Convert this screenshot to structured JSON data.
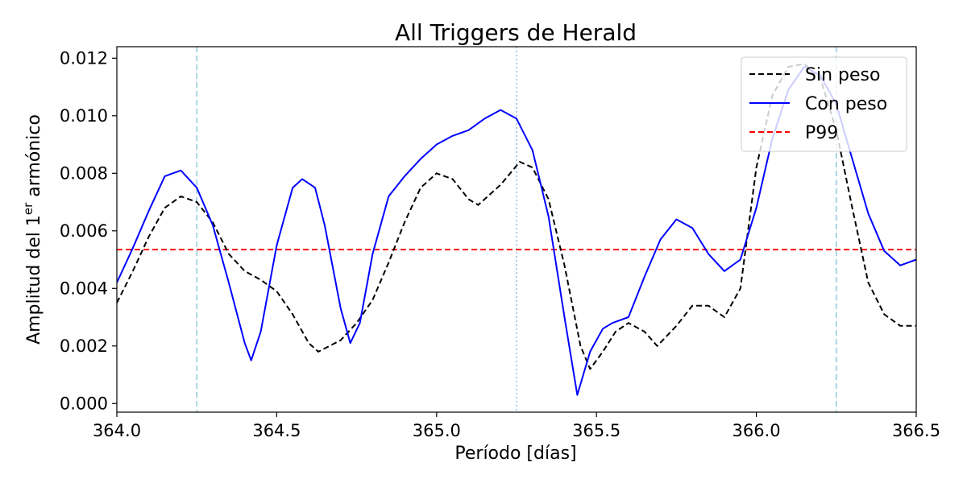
{
  "chart_data": {
    "type": "line",
    "title": "All Triggers de Herald",
    "xlabel": "Período [días]",
    "ylabel_main": "Amplitud del 1",
    "ylabel_sup": "er",
    "ylabel_tail": " armónico",
    "xlim": [
      364.0,
      366.5
    ],
    "ylim": [
      -0.0003,
      0.0124
    ],
    "x_ticks": [
      "364.0",
      "364.5",
      "365.0",
      "365.5",
      "366.0",
      "366.5"
    ],
    "x_tick_values": [
      364.0,
      364.5,
      365.0,
      365.5,
      366.0,
      366.5
    ],
    "y_ticks": [
      "0.000",
      "0.002",
      "0.004",
      "0.006",
      "0.008",
      "0.010",
      "0.012"
    ],
    "y_tick_values": [
      0.0,
      0.002,
      0.004,
      0.006,
      0.008,
      0.01,
      0.012
    ],
    "grid": false,
    "legend_position": "top-right",
    "vlines": [
      {
        "x": 364.25,
        "style": "dashed",
        "color": "#9fd3e0"
      },
      {
        "x": 365.25,
        "style": "dotted",
        "color": "#9ccbee"
      },
      {
        "x": 366.25,
        "style": "dashed",
        "color": "#9fd3e0"
      }
    ],
    "hlines": [
      {
        "name": "P99",
        "y": 0.00535,
        "color": "#ff0000",
        "style": "dashed"
      }
    ],
    "series": [
      {
        "name": "Sin peso",
        "color": "#000000",
        "style": "dashed",
        "points": [
          [
            364.0,
            0.0035
          ],
          [
            364.05,
            0.0046
          ],
          [
            364.1,
            0.0058
          ],
          [
            364.15,
            0.0068
          ],
          [
            364.2,
            0.0072
          ],
          [
            364.25,
            0.007
          ],
          [
            364.3,
            0.0063
          ],
          [
            364.35,
            0.0052
          ],
          [
            364.4,
            0.0046
          ],
          [
            364.45,
            0.0043
          ],
          [
            364.5,
            0.0039
          ],
          [
            364.55,
            0.0031
          ],
          [
            364.6,
            0.0021
          ],
          [
            364.63,
            0.0018
          ],
          [
            364.7,
            0.0022
          ],
          [
            364.75,
            0.0028
          ],
          [
            364.8,
            0.0036
          ],
          [
            364.85,
            0.0049
          ],
          [
            364.9,
            0.0063
          ],
          [
            364.95,
            0.0075
          ],
          [
            365.0,
            0.008
          ],
          [
            365.05,
            0.0078
          ],
          [
            365.1,
            0.0071
          ],
          [
            365.13,
            0.0069
          ],
          [
            365.2,
            0.0076
          ],
          [
            365.26,
            0.0084
          ],
          [
            365.3,
            0.0082
          ],
          [
            365.35,
            0.0071
          ],
          [
            365.4,
            0.0048
          ],
          [
            365.45,
            0.002
          ],
          [
            365.48,
            0.0012
          ],
          [
            365.52,
            0.0018
          ],
          [
            365.56,
            0.0025
          ],
          [
            365.6,
            0.0028
          ],
          [
            365.65,
            0.0025
          ],
          [
            365.69,
            0.002
          ],
          [
            365.75,
            0.0027
          ],
          [
            365.8,
            0.0034
          ],
          [
            365.85,
            0.0034
          ],
          [
            365.9,
            0.003
          ],
          [
            365.95,
            0.004
          ],
          [
            366.0,
            0.0082
          ],
          [
            366.05,
            0.0107
          ],
          [
            366.1,
            0.0117
          ],
          [
            366.15,
            0.0118
          ],
          [
            366.2,
            0.0113
          ],
          [
            366.25,
            0.0095
          ],
          [
            366.3,
            0.0068
          ],
          [
            366.35,
            0.0042
          ],
          [
            366.4,
            0.0031
          ],
          [
            366.45,
            0.0027
          ],
          [
            366.5,
            0.0027
          ]
        ]
      },
      {
        "name": "Con peso",
        "color": "#0000ff",
        "style": "solid",
        "points": [
          [
            364.0,
            0.0042
          ],
          [
            364.05,
            0.0054
          ],
          [
            364.1,
            0.0067
          ],
          [
            364.15,
            0.0079
          ],
          [
            364.2,
            0.0081
          ],
          [
            364.25,
            0.0075
          ],
          [
            364.3,
            0.0062
          ],
          [
            364.35,
            0.0042
          ],
          [
            364.4,
            0.0021
          ],
          [
            364.42,
            0.0015
          ],
          [
            364.45,
            0.0025
          ],
          [
            364.5,
            0.0055
          ],
          [
            364.55,
            0.0075
          ],
          [
            364.58,
            0.0078
          ],
          [
            364.62,
            0.0075
          ],
          [
            364.65,
            0.0062
          ],
          [
            364.7,
            0.0033
          ],
          [
            364.73,
            0.0021
          ],
          [
            364.76,
            0.0028
          ],
          [
            364.8,
            0.0052
          ],
          [
            364.85,
            0.0072
          ],
          [
            364.9,
            0.0079
          ],
          [
            364.95,
            0.0085
          ],
          [
            365.0,
            0.009
          ],
          [
            365.05,
            0.0093
          ],
          [
            365.1,
            0.0095
          ],
          [
            365.15,
            0.0099
          ],
          [
            365.2,
            0.0102
          ],
          [
            365.25,
            0.0099
          ],
          [
            365.3,
            0.0088
          ],
          [
            365.35,
            0.0065
          ],
          [
            365.4,
            0.003
          ],
          [
            365.44,
            0.0003
          ],
          [
            365.48,
            0.0018
          ],
          [
            365.52,
            0.0026
          ],
          [
            365.55,
            0.0028
          ],
          [
            365.6,
            0.003
          ],
          [
            365.65,
            0.0044
          ],
          [
            365.7,
            0.0057
          ],
          [
            365.75,
            0.0064
          ],
          [
            365.8,
            0.0061
          ],
          [
            365.85,
            0.0052
          ],
          [
            365.9,
            0.0046
          ],
          [
            365.95,
            0.005
          ],
          [
            366.0,
            0.0068
          ],
          [
            366.05,
            0.0092
          ],
          [
            366.1,
            0.0109
          ],
          [
            366.15,
            0.0117
          ],
          [
            366.2,
            0.0114
          ],
          [
            366.25,
            0.0104
          ],
          [
            366.3,
            0.0085
          ],
          [
            366.35,
            0.0066
          ],
          [
            366.4,
            0.0053
          ],
          [
            366.45,
            0.0048
          ],
          [
            366.5,
            0.005
          ]
        ]
      }
    ],
    "legend_entries": [
      {
        "label": "Sin peso",
        "color": "#000000",
        "style": "dashed"
      },
      {
        "label": "Con peso",
        "color": "#0000ff",
        "style": "solid"
      },
      {
        "label": "P99",
        "color": "#ff0000",
        "style": "dashed"
      }
    ]
  }
}
